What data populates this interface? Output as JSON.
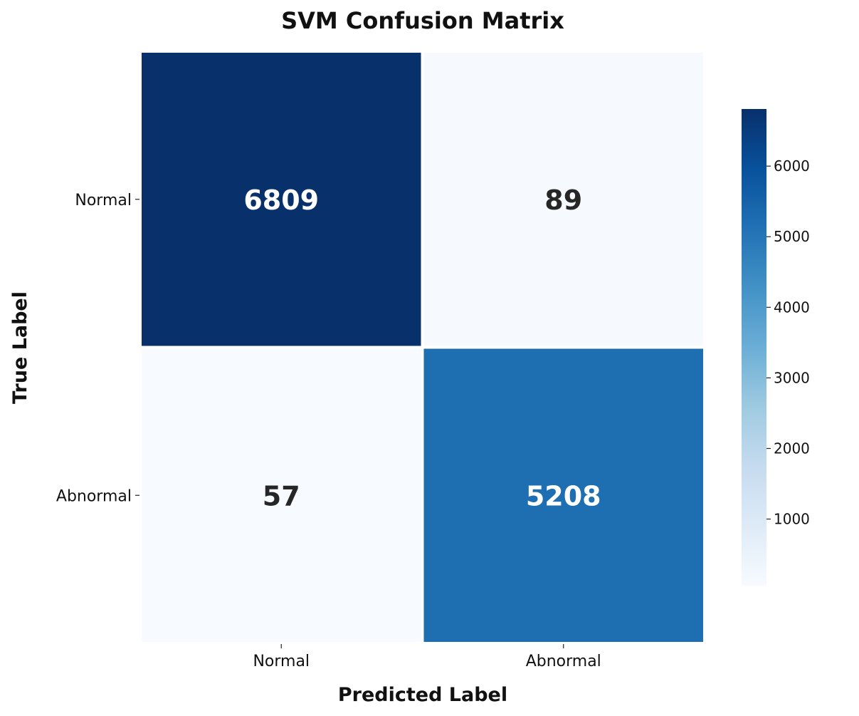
{
  "chart_data": {
    "type": "heatmap",
    "title": "SVM Confusion Matrix",
    "xlabel": "Predicted Label",
    "ylabel": "True Label",
    "x_categories": [
      "Normal",
      "Abnormal"
    ],
    "y_categories": [
      "Normal",
      "Abnormal"
    ],
    "values": [
      [
        6809,
        89
      ],
      [
        57,
        5208
      ]
    ],
    "colormap": "Blues",
    "colorbar": {
      "min": 57,
      "max": 6809,
      "ticks": [
        1000,
        2000,
        3000,
        4000,
        5000,
        6000
      ]
    },
    "colors": {
      "cell_dark": "#08306b",
      "cell_mid": "#1f6db1",
      "cell_light": "#f7fbff",
      "text_dark": "#262626",
      "text_light": "#ffffff",
      "grid": "#ffffff"
    }
  }
}
